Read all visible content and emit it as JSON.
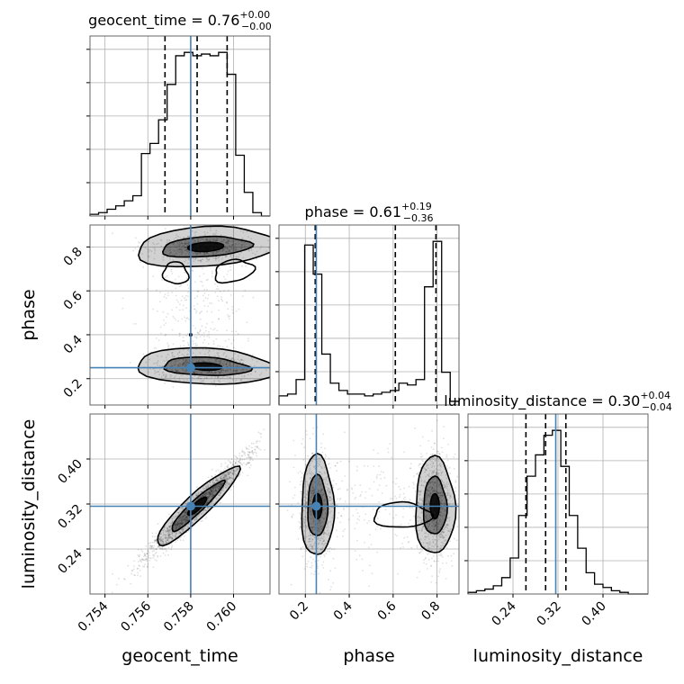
{
  "colors": {
    "truth": "#4682b4",
    "hist": "#000000",
    "grid": "#b0b0b0"
  },
  "chart_data": {
    "type": "corner",
    "parameters": [
      "geocent_time",
      "phase",
      "luminosity_distance"
    ],
    "axis_labels": {
      "geocent_time": "geocent_time",
      "phase": "phase",
      "luminosity_distance": "luminosity_distance"
    },
    "ranges": {
      "geocent_time": [
        0.7533,
        0.7617
      ],
      "phase": [
        0.08,
        0.9
      ],
      "luminosity_distance": [
        0.16,
        0.48
      ]
    },
    "ticks": {
      "geocent_time": {
        "values": [
          0.754,
          0.756,
          0.758,
          0.76
        ],
        "labels": [
          "0.754",
          "0.756",
          "0.758",
          "0.760"
        ]
      },
      "phase": {
        "values": [
          0.2,
          0.4,
          0.6,
          0.8
        ],
        "labels": [
          "0.2",
          "0.4",
          "0.6",
          "0.8"
        ]
      },
      "luminosity_distance": {
        "values": [
          0.24,
          0.32,
          0.4
        ],
        "labels": [
          "0.24",
          "0.32",
          "0.40"
        ]
      }
    },
    "truths": {
      "geocent_time": 0.758,
      "phase": 0.25,
      "luminosity_distance": 0.316
    },
    "titles": {
      "geocent_time": {
        "name": "geocent_time",
        "value": "0.76",
        "plus": "+0.00",
        "minus": "−0.00"
      },
      "phase": {
        "name": "phase",
        "value": "0.61",
        "plus": "+0.19",
        "minus": "−0.36"
      },
      "luminosity_distance": {
        "name": "luminosity_distance",
        "value": "0.30",
        "plus": "+0.04",
        "minus": "−0.04"
      }
    },
    "quantiles": {
      "geocent_time": [
        0.7568,
        0.7583,
        0.7597
      ],
      "phase": [
        0.245,
        0.61,
        0.795
      ],
      "luminosity_distance": [
        0.263,
        0.298,
        0.334
      ]
    },
    "histograms": {
      "geocent_time": {
        "edges": [
          0.7533,
          0.7537,
          0.7541,
          0.7545,
          0.7549,
          0.7553,
          0.7557,
          0.7561,
          0.7565,
          0.7569,
          0.7573,
          0.7577,
          0.7581,
          0.7585,
          0.7589,
          0.7593,
          0.7597,
          0.7601,
          0.7605,
          0.7609,
          0.7613,
          0.7617
        ],
        "counts": [
          1,
          2,
          4,
          6,
          9,
          12,
          37,
          43,
          57,
          78,
          95,
          97,
          95,
          96,
          95,
          97,
          84,
          36,
          14,
          2,
          0
        ]
      },
      "phase": {
        "edges": [
          0.08,
          0.119,
          0.158,
          0.197,
          0.236,
          0.275,
          0.314,
          0.353,
          0.392,
          0.431,
          0.47,
          0.509,
          0.548,
          0.587,
          0.626,
          0.665,
          0.704,
          0.743,
          0.782,
          0.821,
          0.86,
          0.9
        ],
        "counts": [
          5,
          6,
          14,
          88,
          72,
          28,
          12,
          8,
          6,
          6,
          5,
          6,
          7,
          8,
          12,
          11,
          14,
          65,
          90,
          18,
          2
        ]
      },
      "luminosity_distance": {
        "edges": [
          0.16,
          0.175,
          0.19,
          0.205,
          0.22,
          0.235,
          0.25,
          0.265,
          0.28,
          0.295,
          0.31,
          0.325,
          0.34,
          0.355,
          0.37,
          0.385,
          0.4,
          0.415,
          0.43,
          0.445,
          0.46,
          0.48
        ],
        "counts": [
          1,
          2,
          3,
          5,
          10,
          22,
          48,
          72,
          85,
          97,
          100,
          78,
          48,
          28,
          13,
          6,
          4,
          2,
          1,
          0,
          0
        ]
      }
    },
    "density_modes": [
      {
        "x": "geocent_time",
        "y": "phase",
        "centers": [
          [
            0.7588,
            0.8
          ],
          [
            0.7586,
            0.25
          ]
        ]
      },
      {
        "x": "geocent_time",
        "y": "luminosity_distance",
        "centers": [
          [
            0.7583,
            0.316
          ]
        ]
      },
      {
        "x": "phase",
        "y": "luminosity_distance",
        "centers": [
          [
            0.25,
            0.316
          ],
          [
            0.79,
            0.316
          ]
        ]
      }
    ]
  }
}
